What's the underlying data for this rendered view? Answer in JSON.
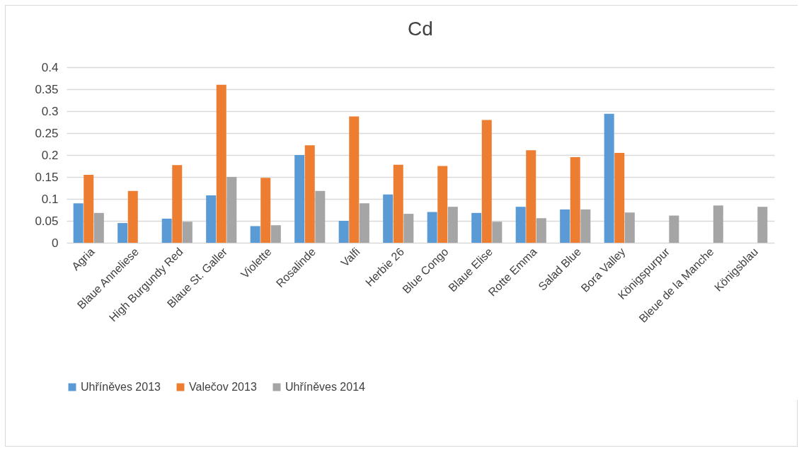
{
  "chart_data": {
    "type": "bar",
    "title": "Cd",
    "categories": [
      "Agria",
      "Blaue Anneliese",
      "High Burgundy Red",
      "Blaue St. Galler",
      "Violette",
      "Rosalinde",
      "Valfi",
      "Herbie 26",
      "Blue Congo",
      "Blaue Elise",
      "Rotte Emma",
      "Salad Blue",
      "Bora Valley",
      "Königspurpur",
      "Bleue de la Manche",
      "Königsblau"
    ],
    "series": [
      {
        "name": "Uhříněves 2013",
        "color": "#5b9bd5",
        "values": [
          0.09,
          0.045,
          0.055,
          0.108,
          0.038,
          0.2,
          0.05,
          0.11,
          0.07,
          0.068,
          0.082,
          0.076,
          0.294,
          null,
          null,
          null
        ]
      },
      {
        "name": "Valečov 2013",
        "color": "#ed7d31",
        "values": [
          0.155,
          0.118,
          0.177,
          0.36,
          0.148,
          0.222,
          0.288,
          0.178,
          0.175,
          0.28,
          0.211,
          0.195,
          0.205,
          null,
          null,
          null
        ]
      },
      {
        "name": "Uhříněves 2014",
        "color": "#a5a5a5",
        "values": [
          0.068,
          0,
          0.048,
          0.15,
          0.04,
          0.118,
          0.09,
          0.066,
          0.082,
          0.048,
          0.056,
          0.076,
          0.069,
          0.062,
          0.085,
          0.082
        ]
      }
    ],
    "ylim": [
      0,
      0.4
    ],
    "yticks": [
      0,
      0.05,
      0.1,
      0.15,
      0.2,
      0.25,
      0.3,
      0.35,
      0.4
    ],
    "grid": "y",
    "legend": "bottom"
  }
}
